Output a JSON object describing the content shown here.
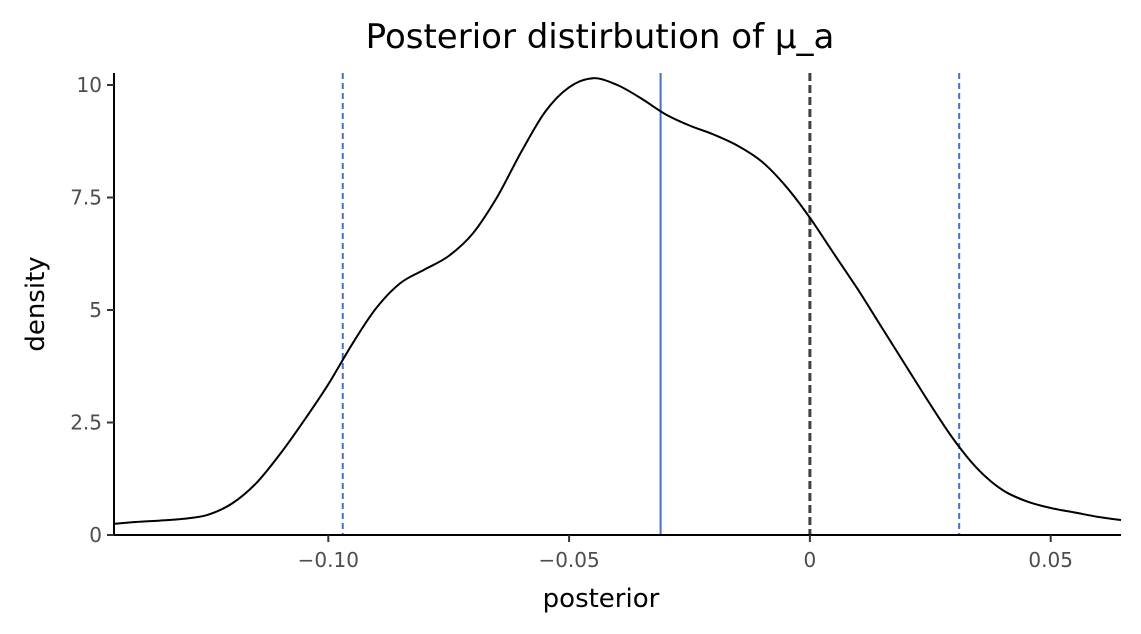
{
  "chart_data": {
    "type": "line",
    "title": "Posterior distirbution of μ_a",
    "xlabel": "posterior",
    "ylabel": "density",
    "xlim": [
      -0.1445,
      0.0646
    ],
    "ylim": [
      0,
      10.2
    ],
    "x_ticks": [
      {
        "value": -0.1,
        "label": "−0.10"
      },
      {
        "value": -0.05,
        "label": "−0.05"
      },
      {
        "value": 0,
        "label": "0"
      },
      {
        "value": 0.05,
        "label": "0.05"
      }
    ],
    "y_ticks": [
      {
        "value": 0,
        "label": "0"
      },
      {
        "value": 2.5,
        "label": "2.5"
      },
      {
        "value": 5,
        "label": "5"
      },
      {
        "value": 7.5,
        "label": "7.5"
      },
      {
        "value": 10,
        "label": "10"
      }
    ],
    "series": [
      {
        "color": "#000000",
        "x": [
          -0.1445,
          -0.14,
          -0.135,
          -0.13,
          -0.125,
          -0.12,
          -0.115,
          -0.11,
          -0.105,
          -0.1,
          -0.095,
          -0.09,
          -0.085,
          -0.08,
          -0.075,
          -0.07,
          -0.065,
          -0.06,
          -0.055,
          -0.05,
          -0.045,
          -0.04,
          -0.035,
          -0.03,
          -0.025,
          -0.02,
          -0.015,
          -0.01,
          -0.005,
          0,
          0.005,
          0.01,
          0.015,
          0.02,
          0.025,
          0.03,
          0.035,
          0.04,
          0.045,
          0.05,
          0.055,
          0.06,
          0.0646
        ],
        "y": [
          0.25,
          0.29,
          0.32,
          0.36,
          0.45,
          0.7,
          1.15,
          1.8,
          2.55,
          3.35,
          4.25,
          5.05,
          5.6,
          5.9,
          6.2,
          6.7,
          7.5,
          8.5,
          9.4,
          9.95,
          10.15,
          10.0,
          9.7,
          9.35,
          9.1,
          8.9,
          8.65,
          8.3,
          7.75,
          7.05,
          6.25,
          5.45,
          4.6,
          3.75,
          2.9,
          2.1,
          1.45,
          1.0,
          0.75,
          0.6,
          0.5,
          0.4,
          0.33
        ]
      }
    ],
    "reference_lines": [
      {
        "x": -0.097,
        "style": "dashed",
        "color": "#4472c4"
      },
      {
        "x": -0.031,
        "style": "solid",
        "color": "#4472c4"
      },
      {
        "x": 0,
        "style": "dashed",
        "color": "#404040"
      },
      {
        "x": 0.031,
        "style": "dashed",
        "color": "#4472c4"
      }
    ],
    "grid": false,
    "legend": "none"
  }
}
